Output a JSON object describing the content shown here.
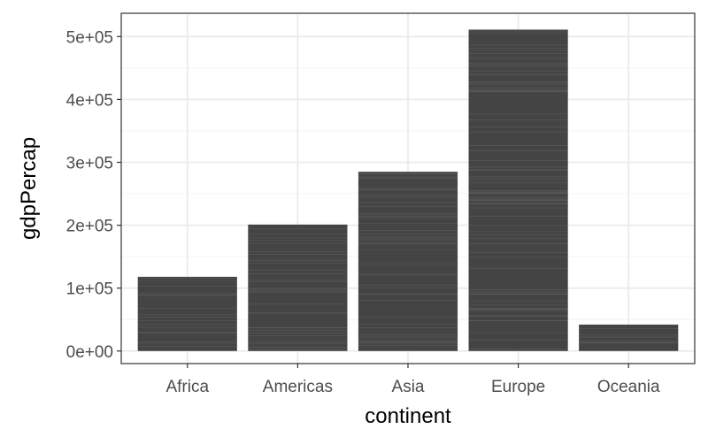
{
  "chart_data": {
    "type": "bar",
    "title": "",
    "xlabel": "continent",
    "ylabel": "gdpPercap",
    "categories": [
      "Africa",
      "Americas",
      "Asia",
      "Europe",
      "Oceania"
    ],
    "values": [
      118000,
      201000,
      285000,
      511000,
      42000
    ],
    "ylim": [
      -20000,
      537000
    ],
    "yticks": [
      0,
      100000,
      200000,
      300000,
      400000,
      500000
    ],
    "ytick_labels": [
      "0e+00",
      "1e+05",
      "2e+05",
      "3e+05",
      "4e+05",
      "5e+05"
    ],
    "grid": true,
    "theme": "bw",
    "bar_color": "#444444",
    "stripe_color": "#6e6e6e",
    "grid_major_color": "#ebebeb",
    "grid_minor_color": "#f4f4f4",
    "border_color": "#333333"
  }
}
